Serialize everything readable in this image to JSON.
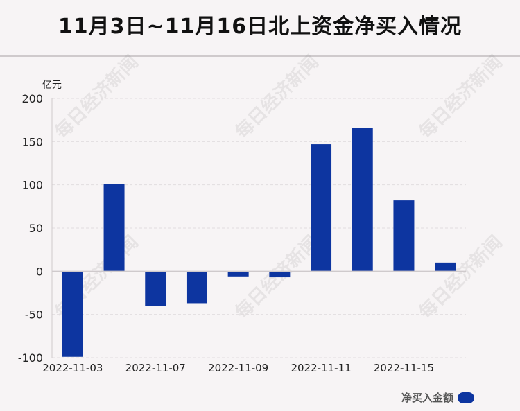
{
  "title": "11月3日~11月16日北上资金净买入情况",
  "unit_label": "亿元",
  "watermark": "每日经济新闻",
  "colors": {
    "bar": "#0d35a0",
    "grid": "#e2dddf",
    "axis": "#cfcacc",
    "background": "#f7f4f5"
  },
  "chart_data": {
    "type": "bar",
    "categories": [
      "2022-11-03",
      "2022-11-04",
      "2022-11-07",
      "2022-11-08",
      "2022-11-09",
      "2022-11-10",
      "2022-11-11",
      "2022-11-14",
      "2022-11-15",
      "2022-11-16"
    ],
    "values": [
      -99,
      101,
      -40,
      -37,
      -6,
      -7,
      147,
      166,
      82,
      10
    ],
    "tick_labels": [
      "2022-11-03",
      "2022-11-07",
      "2022-11-09",
      "2022-11-11",
      "2022-11-15"
    ],
    "tick_label_indices": [
      0,
      2,
      4,
      6,
      8
    ],
    "ylim": [
      -100,
      200
    ],
    "yticks": [
      -100,
      -50,
      0,
      50,
      100,
      150,
      200
    ],
    "ylabel": "亿元",
    "grid": true,
    "legend": {
      "position": "bottom-right",
      "entries": [
        "净买入金额"
      ]
    }
  }
}
